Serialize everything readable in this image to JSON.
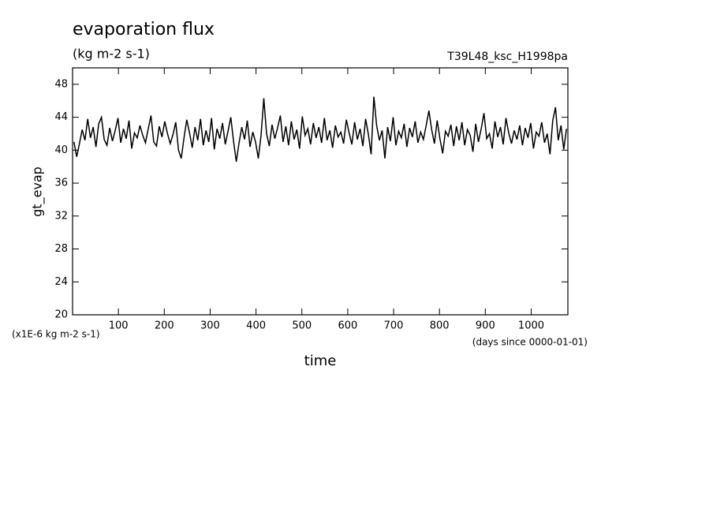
{
  "chart_data": {
    "type": "line",
    "title": "evaporation flux",
    "subtitle": "(kg m-2 s-1)",
    "run_label": "T39L48_ksc_H1998pa",
    "xlabel": "time",
    "ylabel": "gt_evap",
    "y_unit_note": "(x1E-6 kg m-2 s-1)",
    "x_unit_note": "(days since 0000-01-01)",
    "xlim": [
      0,
      1080
    ],
    "ylim": [
      20,
      50
    ],
    "xticks": [
      100,
      200,
      300,
      400,
      500,
      600,
      700,
      800,
      900,
      1000
    ],
    "yticks": [
      20,
      24,
      28,
      32,
      36,
      40,
      44,
      48
    ],
    "x": [
      3,
      9,
      15,
      21,
      27,
      33,
      39,
      45,
      51,
      57,
      63,
      69,
      75,
      81,
      87,
      93,
      99,
      105,
      111,
      117,
      123,
      129,
      135,
      141,
      147,
      153,
      159,
      165,
      171,
      177,
      183,
      189,
      195,
      201,
      207,
      213,
      219,
      225,
      231,
      237,
      243,
      249,
      255,
      261,
      267,
      273,
      279,
      285,
      291,
      297,
      303,
      309,
      315,
      321,
      327,
      333,
      339,
      345,
      351,
      357,
      363,
      369,
      375,
      381,
      387,
      393,
      399,
      405,
      411,
      417,
      423,
      429,
      435,
      441,
      447,
      453,
      459,
      465,
      471,
      477,
      483,
      489,
      495,
      501,
      507,
      513,
      519,
      525,
      531,
      537,
      543,
      549,
      555,
      561,
      567,
      573,
      579,
      585,
      591,
      597,
      603,
      609,
      615,
      621,
      627,
      633,
      639,
      645,
      651,
      657,
      663,
      669,
      675,
      681,
      687,
      693,
      699,
      705,
      711,
      717,
      723,
      729,
      735,
      741,
      747,
      753,
      759,
      765,
      771,
      777,
      783,
      789,
      795,
      801,
      807,
      813,
      819,
      825,
      831,
      837,
      843,
      849,
      855,
      861,
      867,
      873,
      879,
      885,
      891,
      897,
      903,
      909,
      915,
      921,
      927,
      933,
      939,
      945,
      951,
      957,
      963,
      969,
      975,
      981,
      987,
      993,
      999,
      1005,
      1011,
      1017,
      1023,
      1029,
      1035,
      1041,
      1047,
      1053,
      1059,
      1065,
      1071,
      1077
    ],
    "series": [
      {
        "name": "gt_evap",
        "color": "#000000",
        "values": [
          41.0,
          39.2,
          40.8,
          42.5,
          41.2,
          43.8,
          41.5,
          42.8,
          40.4,
          43.2,
          44.0,
          41.3,
          40.6,
          42.7,
          41.1,
          42.4,
          43.9,
          40.9,
          42.6,
          41.4,
          43.6,
          40.2,
          42.1,
          41.5,
          43.0,
          41.8,
          40.9,
          42.6,
          44.2,
          41.0,
          40.5,
          42.9,
          41.6,
          43.5,
          42.0,
          40.8,
          41.9,
          43.4,
          40.0,
          39.0,
          41.5,
          43.7,
          42.1,
          40.3,
          42.8,
          41.2,
          43.8,
          40.6,
          42.4,
          41.0,
          43.9,
          40.1,
          42.6,
          41.4,
          43.3,
          40.7,
          42.3,
          44.0,
          41.1,
          38.6,
          40.9,
          42.8,
          41.3,
          43.6,
          40.4,
          42.2,
          41.0,
          39.0,
          41.8,
          46.3,
          42.0,
          40.5,
          43.1,
          41.4,
          42.7,
          44.2,
          41.0,
          42.9,
          40.6,
          43.5,
          41.3,
          42.5,
          40.2,
          44.1,
          41.8,
          42.6,
          40.7,
          43.3,
          41.5,
          42.8,
          40.9,
          43.9,
          41.2,
          42.4,
          40.3,
          43.0,
          41.6,
          42.2,
          40.8,
          43.7,
          42.1,
          40.7,
          43.4,
          41.3,
          42.6,
          40.5,
          43.8,
          41.9,
          39.5,
          46.5,
          43.0,
          41.2,
          42.4,
          39.0,
          42.8,
          41.1,
          44.0,
          40.6,
          42.3,
          41.5,
          43.2,
          40.4,
          42.7,
          41.6,
          43.5,
          40.9,
          42.2,
          41.3,
          43.0,
          44.8,
          42.5,
          40.8,
          43.6,
          41.4,
          39.6,
          42.3,
          41.7,
          43.1,
          40.5,
          42.9,
          41.2,
          43.4,
          40.6,
          42.5,
          41.8,
          39.8,
          43.2,
          41.0,
          42.6,
          44.5,
          41.4,
          42.0,
          40.2,
          43.5,
          41.6,
          42.8,
          40.7,
          43.9,
          42.1,
          40.8,
          42.4,
          41.3,
          43.0,
          40.6,
          42.7,
          41.5,
          43.3,
          40.2,
          42.2,
          41.7,
          43.4,
          40.9,
          42.0,
          39.5,
          43.6,
          45.2,
          41.2,
          43.0,
          40.1,
          42.6
        ]
      }
    ]
  }
}
